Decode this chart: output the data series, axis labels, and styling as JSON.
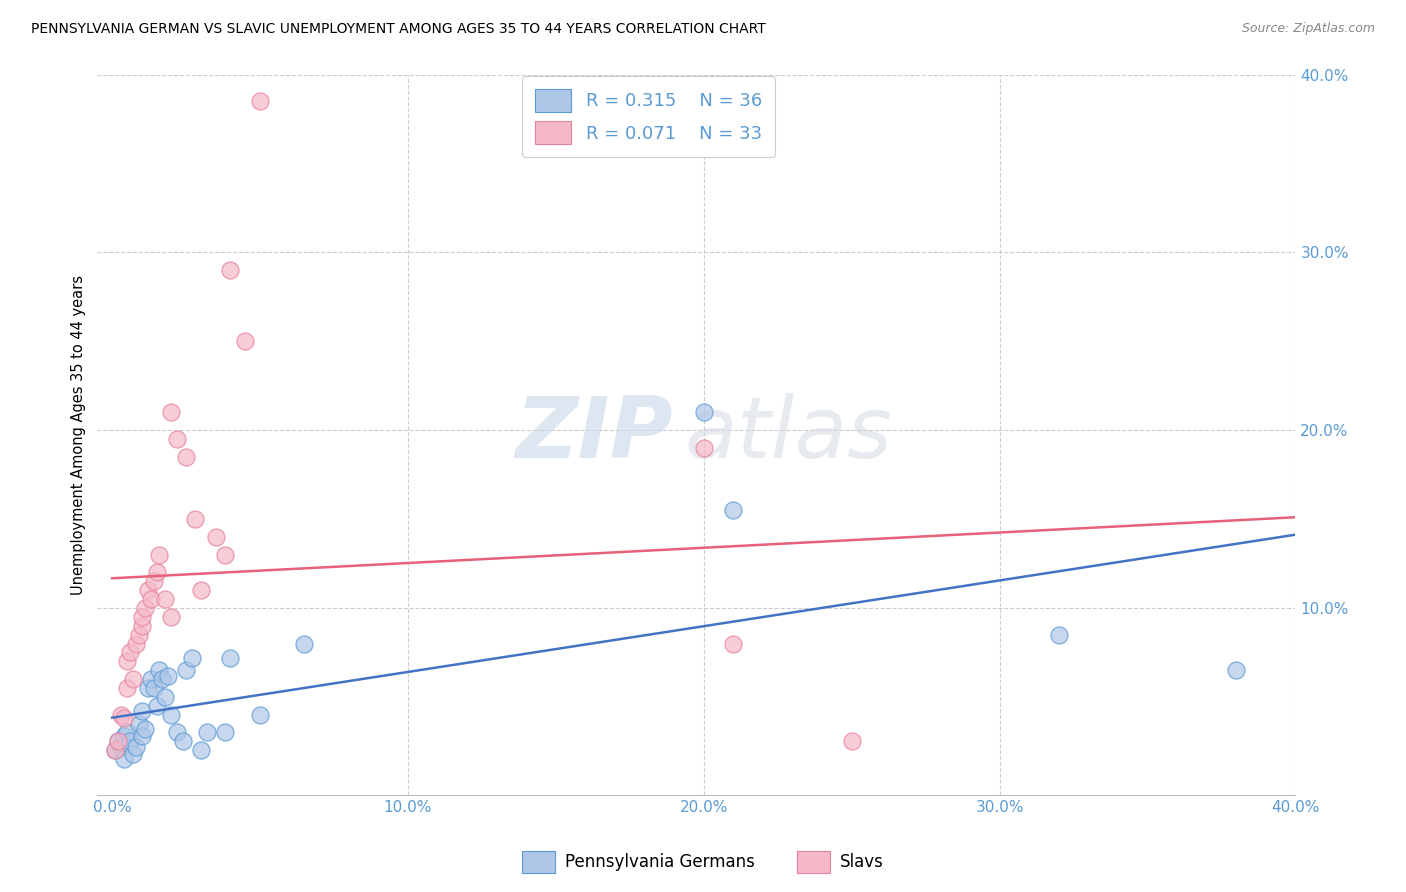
{
  "title": "PENNSYLVANIA GERMAN VS SLAVIC UNEMPLOYMENT AMONG AGES 35 TO 44 YEARS CORRELATION CHART",
  "source": "Source: ZipAtlas.com",
  "ylabel": "Unemployment Among Ages 35 to 44 years",
  "xlim": [
    -0.005,
    0.4
  ],
  "ylim": [
    -0.005,
    0.4
  ],
  "xticks": [
    0.0,
    0.1,
    0.2,
    0.3,
    0.4
  ],
  "yticks": [
    0.1,
    0.2,
    0.3,
    0.4
  ],
  "xticklabels": [
    "0.0%",
    "10.0%",
    "20.0%",
    "30.0%",
    "40.0%"
  ],
  "yticklabels": [
    "10.0%",
    "20.0%",
    "30.0%",
    "40.0%"
  ],
  "background_color": "#ffffff",
  "grid_color": "#cccccc",
  "blue_fill": "#aec6e8",
  "pink_fill": "#f4b8c8",
  "blue_edge": "#5b9bd5",
  "pink_edge": "#e8829a",
  "blue_line": "#4472c4",
  "pink_line": "#e8607a",
  "legend_label_blue": "Pennsylvania Germans",
  "legend_label_pink": "Slavs",
  "watermark_zip": "ZIP",
  "watermark_atlas": "atlas",
  "blue_x": [
    0.001,
    0.002,
    0.003,
    0.004,
    0.004,
    0.005,
    0.006,
    0.007,
    0.008,
    0.009,
    0.01,
    0.01,
    0.011,
    0.012,
    0.013,
    0.014,
    0.015,
    0.016,
    0.017,
    0.018,
    0.019,
    0.02,
    0.022,
    0.024,
    0.025,
    0.027,
    0.03,
    0.032,
    0.038,
    0.04,
    0.05,
    0.065,
    0.2,
    0.21,
    0.32,
    0.38
  ],
  "blue_y": [
    0.02,
    0.025,
    0.022,
    0.028,
    0.015,
    0.03,
    0.025,
    0.018,
    0.022,
    0.035,
    0.028,
    0.042,
    0.032,
    0.055,
    0.06,
    0.055,
    0.045,
    0.065,
    0.06,
    0.05,
    0.062,
    0.04,
    0.03,
    0.025,
    0.065,
    0.072,
    0.02,
    0.03,
    0.03,
    0.072,
    0.04,
    0.08,
    0.21,
    0.155,
    0.085,
    0.065
  ],
  "pink_x": [
    0.001,
    0.002,
    0.003,
    0.004,
    0.005,
    0.005,
    0.006,
    0.007,
    0.008,
    0.009,
    0.01,
    0.01,
    0.011,
    0.012,
    0.013,
    0.014,
    0.015,
    0.016,
    0.018,
    0.02,
    0.02,
    0.022,
    0.025,
    0.028,
    0.03,
    0.035,
    0.038,
    0.04,
    0.045,
    0.05,
    0.2,
    0.21,
    0.25
  ],
  "pink_y": [
    0.02,
    0.025,
    0.04,
    0.038,
    0.055,
    0.07,
    0.075,
    0.06,
    0.08,
    0.085,
    0.09,
    0.095,
    0.1,
    0.11,
    0.105,
    0.115,
    0.12,
    0.13,
    0.105,
    0.095,
    0.21,
    0.195,
    0.185,
    0.15,
    0.11,
    0.14,
    0.13,
    0.29,
    0.25,
    0.385,
    0.19,
    0.08,
    0.025
  ]
}
